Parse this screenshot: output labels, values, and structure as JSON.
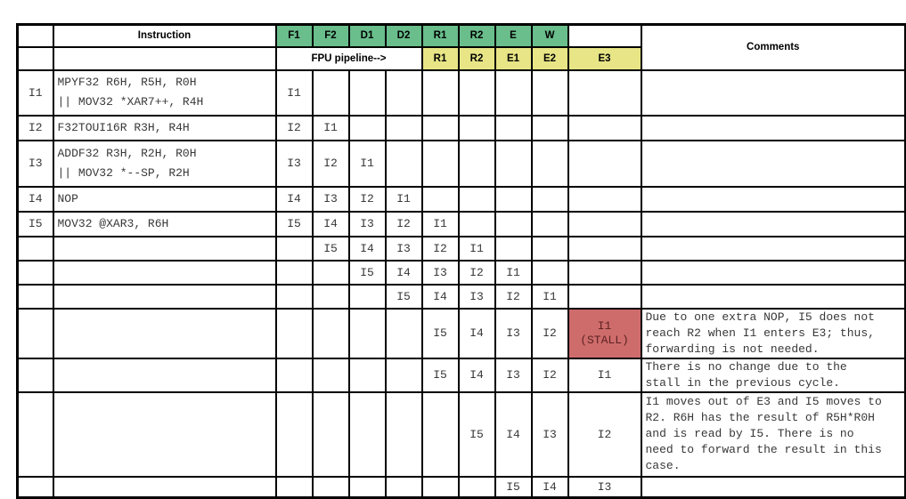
{
  "colors": {
    "stage_header_green": "#69BE8C",
    "subheader_yellow": "#E7E586",
    "stall_red": "#CE6C6C",
    "stall_text": "#5E2222"
  },
  "header": {
    "instruction": "Instruction",
    "comments": "Comments",
    "fpu_pipeline": "FPU pipeline-->",
    "stages_green": [
      "F1",
      "F2",
      "D1",
      "D2",
      "R1",
      "R2",
      "E",
      "W"
    ],
    "stages_yellow": [
      "R1",
      "R2",
      "E1",
      "E2",
      "E3"
    ]
  },
  "rows": [
    {
      "label": "I1",
      "instruction": [
        "MPYF32 R6H, R5H, R0H",
        "|| MOV32 *XAR7++, R4H"
      ],
      "cells": [
        "I1",
        "",
        "",
        "",
        "",
        "",
        "",
        "",
        ""
      ],
      "comment": ""
    },
    {
      "label": "I2",
      "instruction": [
        "F32TOUI16R R3H, R4H"
      ],
      "cells": [
        "I2",
        "I1",
        "",
        "",
        "",
        "",
        "",
        "",
        ""
      ],
      "comment": ""
    },
    {
      "label": "I3",
      "instruction": [
        "ADDF32 R3H, R2H, R0H",
        "|| MOV32 *--SP, R2H"
      ],
      "cells": [
        "I3",
        "I2",
        "I1",
        "",
        "",
        "",
        "",
        "",
        ""
      ],
      "comment": ""
    },
    {
      "label": "I4",
      "instruction": [
        "NOP"
      ],
      "cells": [
        "I4",
        "I3",
        "I2",
        "I1",
        "",
        "",
        "",
        "",
        ""
      ],
      "comment": ""
    },
    {
      "label": "I5",
      "instruction": [
        "MOV32 @XAR3, R6H"
      ],
      "cells": [
        "I5",
        "I4",
        "I3",
        "I2",
        "I1",
        "",
        "",
        "",
        ""
      ],
      "comment": ""
    },
    {
      "label": "",
      "instruction": [],
      "cells": [
        "",
        "I5",
        "I4",
        "I3",
        "I2",
        "I1",
        "",
        "",
        ""
      ],
      "comment": ""
    },
    {
      "label": "",
      "instruction": [],
      "cells": [
        "",
        "",
        "I5",
        "I4",
        "I3",
        "I2",
        "I1",
        "",
        ""
      ],
      "comment": ""
    },
    {
      "label": "",
      "instruction": [],
      "cells": [
        "",
        "",
        "",
        "I5",
        "I4",
        "I3",
        "I2",
        "I1",
        ""
      ],
      "comment": ""
    },
    {
      "label": "",
      "instruction": [],
      "cells": [
        "",
        "",
        "",
        "",
        "I5",
        "I4",
        "I3",
        "I2",
        ""
      ],
      "stall": {
        "col": 8,
        "lines": [
          "I1",
          "(STALL)"
        ]
      },
      "comment": "Due to one extra NOP, I5 does not\nreach R2 when I1 enters E3; thus,\nforwarding is not needed."
    },
    {
      "label": "",
      "instruction": [],
      "cells": [
        "",
        "",
        "",
        "",
        "I5",
        "I4",
        "I3",
        "I2",
        "I1"
      ],
      "comment": "There is no change due to the\nstall in the previous cycle."
    },
    {
      "label": "",
      "instruction": [],
      "cells": [
        "",
        "",
        "",
        "",
        "",
        "I5",
        "I4",
        "I3",
        "I2"
      ],
      "comment": "I1 moves out of E3 and I5 moves to\nR2. R6H has the result of R5H*R0H\nand is read by I5. There is no\nneed to forward the result in this\ncase."
    },
    {
      "label": "",
      "instruction": [],
      "cells": [
        "",
        "",
        "",
        "",
        "",
        "",
        "I5",
        "I4",
        "I3"
      ],
      "comment": ""
    }
  ]
}
